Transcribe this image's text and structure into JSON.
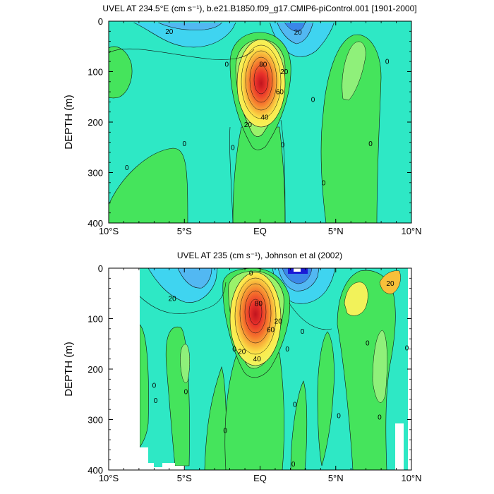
{
  "chart_data": [
    {
      "type": "contour",
      "title": "UVEL AT 234.5°E (cm s⁻¹), b.e21.B1850.f09_g17.CMIP6-piControl.001 [1901-2000]",
      "ylabel": "DEPTH (m)",
      "xlim": [
        -10,
        10
      ],
      "ylim": [
        400,
        0
      ],
      "y_inverted": true,
      "x_ticks": [
        {
          "value": -10,
          "label": "10°S"
        },
        {
          "value": -5,
          "label": "5°S"
        },
        {
          "value": 0,
          "label": "EQ"
        },
        {
          "value": 5,
          "label": "5°N"
        },
        {
          "value": 10,
          "label": "10°N"
        }
      ],
      "y_ticks": [
        0,
        100,
        200,
        300,
        400
      ],
      "contour_interval": 10,
      "core": {
        "lat": 0,
        "depth": 115,
        "max": 100
      },
      "contour_labels": [
        {
          "text": "20",
          "lat": -6.0,
          "depth": 20
        },
        {
          "text": "20",
          "lat": 2.5,
          "depth": 22
        },
        {
          "text": "20",
          "lat": 1.6,
          "depth": 100
        },
        {
          "text": "20",
          "lat": -0.8,
          "depth": 205
        },
        {
          "text": "40",
          "lat": 0.3,
          "depth": 190
        },
        {
          "text": "60",
          "lat": 1.3,
          "depth": 140
        },
        {
          "text": "80",
          "lat": 0.2,
          "depth": 85
        },
        {
          "text": "0",
          "lat": -2.2,
          "depth": 85
        },
        {
          "text": "0",
          "lat": 8.4,
          "depth": 80
        },
        {
          "text": "0",
          "lat": 3.5,
          "depth": 155
        },
        {
          "text": "0",
          "lat": -1.8,
          "depth": 250
        },
        {
          "text": "0",
          "lat": 1.5,
          "depth": 245
        },
        {
          "text": "0",
          "lat": -5.0,
          "depth": 243
        },
        {
          "text": "0",
          "lat": 7.3,
          "depth": 243
        },
        {
          "text": "0",
          "lat": -8.8,
          "depth": 290
        },
        {
          "text": "0",
          "lat": 4.2,
          "depth": 320
        }
      ]
    },
    {
      "type": "contour",
      "title": "UVEL AT 235 (cm s⁻¹), Johnson et al (2002)",
      "ylabel": "DEPTH (m)",
      "xlim": [
        -10,
        10
      ],
      "ylim": [
        400,
        0
      ],
      "y_inverted": true,
      "x_ticks": [
        {
          "value": -10,
          "label": "10°S"
        },
        {
          "value": -5,
          "label": "5°S"
        },
        {
          "value": 0,
          "label": "EQ"
        },
        {
          "value": 5,
          "label": "5°N"
        },
        {
          "value": 10,
          "label": "10°N"
        }
      ],
      "y_ticks": [
        0,
        100,
        200,
        300,
        400
      ],
      "contour_interval": 10,
      "core": {
        "lat": -0.2,
        "depth": 90,
        "max": 100
      },
      "contour_labels": [
        {
          "text": "20",
          "lat": -5.8,
          "depth": 60
        },
        {
          "text": "20",
          "lat": 1.2,
          "depth": 105
        },
        {
          "text": "20",
          "lat": -1.2,
          "depth": 165
        },
        {
          "text": "20",
          "lat": 8.6,
          "depth": 30
        },
        {
          "text": "40",
          "lat": -0.2,
          "depth": 180
        },
        {
          "text": "60",
          "lat": 0.7,
          "depth": 122
        },
        {
          "text": "80",
          "lat": -0.1,
          "depth": 70
        },
        {
          "text": "0",
          "lat": -0.6,
          "depth": 10
        },
        {
          "text": "0",
          "lat": 2.8,
          "depth": 125
        },
        {
          "text": "0",
          "lat": -1.7,
          "depth": 160
        },
        {
          "text": "0",
          "lat": 1.8,
          "depth": 160
        },
        {
          "text": "0",
          "lat": 7.1,
          "depth": 148
        },
        {
          "text": "0",
          "lat": 9.7,
          "depth": 158
        },
        {
          "text": "0",
          "lat": -7.0,
          "depth": 232
        },
        {
          "text": "0",
          "lat": -4.9,
          "depth": 245
        },
        {
          "text": "0",
          "lat": -6.9,
          "depth": 262
        },
        {
          "text": "0",
          "lat": 2.3,
          "depth": 270
        },
        {
          "text": "0",
          "lat": 5.2,
          "depth": 292
        },
        {
          "text": "0",
          "lat": 7.9,
          "depth": 295
        },
        {
          "text": "0",
          "lat": -2.3,
          "depth": 322
        },
        {
          "text": "0",
          "lat": 2.2,
          "depth": 388
        }
      ]
    }
  ]
}
